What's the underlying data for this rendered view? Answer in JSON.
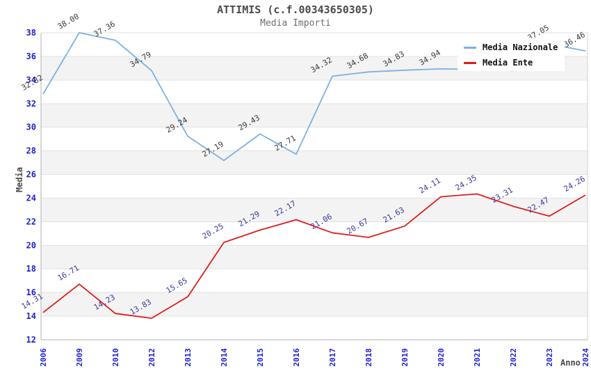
{
  "title": "ATTIMIS (c.f.00343650305)",
  "subtitle": "Media Importi",
  "axes": {
    "y_label": "Media",
    "x_label": "Anno",
    "y_ticks": [
      12,
      14,
      16,
      18,
      20,
      22,
      24,
      26,
      28,
      30,
      32,
      34,
      36,
      38
    ],
    "tick_color": "#2020d0"
  },
  "legend": {
    "items": [
      {
        "label": "Media Nazionale",
        "color": "#7cb1e0"
      },
      {
        "label": "Media Ente",
        "color": "#e11b1b"
      }
    ]
  },
  "chart_data": {
    "type": "line",
    "title": "ATTIMIS (c.f.00343650305)",
    "subtitle": "Media Importi",
    "xlabel": "Anno",
    "ylabel": "Media",
    "ylim": [
      12,
      38
    ],
    "grid": "alternating-horizontal-bands",
    "legend_position": "top-right-inside",
    "categories": [
      "2006",
      "2009",
      "2010",
      "2012",
      "2013",
      "2014",
      "2015",
      "2016",
      "2017",
      "2018",
      "2019",
      "2020",
      "2021",
      "2022",
      "2023",
      "2024"
    ],
    "series": [
      {
        "name": "Media Nazionale",
        "color": "#7cb1e0",
        "label_color": "#3a3a3a",
        "values": [
          32.82,
          38.0,
          37.36,
          34.79,
          29.24,
          27.19,
          29.43,
          27.71,
          34.32,
          34.68,
          34.83,
          34.94,
          34.9,
          34.8,
          37.05,
          36.46
        ],
        "labels": [
          "32.82",
          "38.00",
          "37.36",
          "34.79",
          "29.24",
          "27.19",
          "29.43",
          "27.71",
          "34.32",
          "34.68",
          "34.83",
          "34.94",
          "",
          "",
          "37.05",
          "36.46"
        ]
      },
      {
        "name": "Media Ente",
        "color": "#e11b1b",
        "label_color": "#3a3a9a",
        "values": [
          14.31,
          16.71,
          14.23,
          13.83,
          15.65,
          20.25,
          21.29,
          22.17,
          21.06,
          20.67,
          21.63,
          24.11,
          24.35,
          23.31,
          22.47,
          24.26
        ],
        "labels": [
          "14.31",
          "16.71",
          "14.23",
          "13.83",
          "15.65",
          "20.25",
          "21.29",
          "22.17",
          "21.06",
          "20.67",
          "21.63",
          "24.11",
          "24.35",
          "23.31",
          "22.47",
          "24.26"
        ]
      }
    ],
    "colors": {
      "band_fill": "#f3f3f3",
      "gridline": "#e2e2e2",
      "spine": "#b0b0b0"
    }
  }
}
